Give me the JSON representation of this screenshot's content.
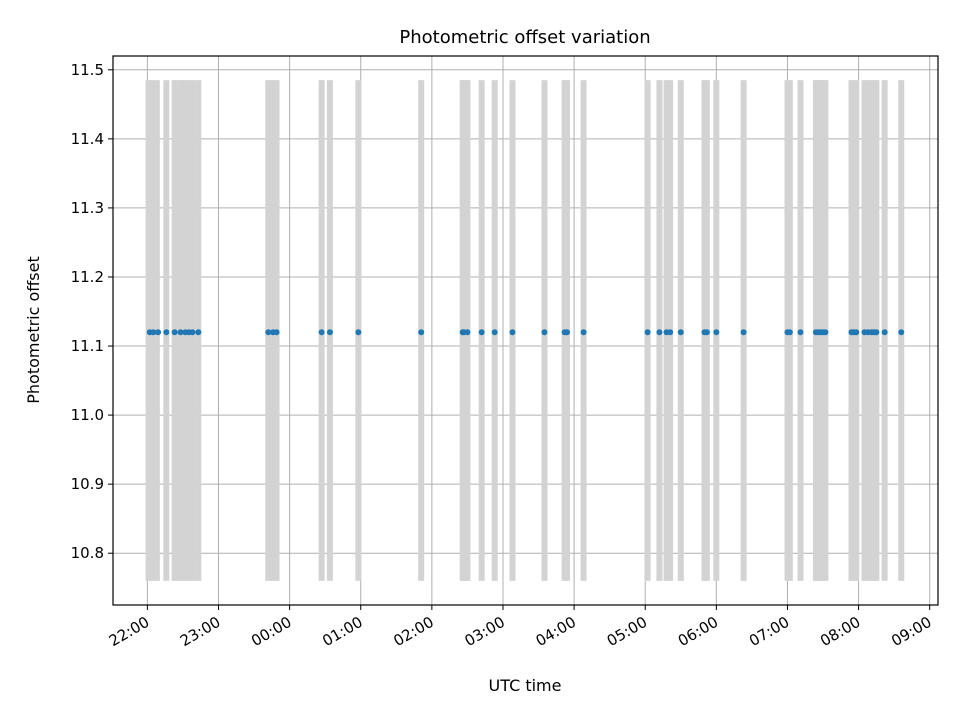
{
  "chart_data": {
    "type": "scatter",
    "title": "Photometric offset variation",
    "xlabel": "UTC time",
    "ylabel": "Photometric offset",
    "grid": true,
    "legend": "none",
    "x_axis": {
      "type": "time",
      "range": [
        "21:31",
        "09:07"
      ],
      "ticks": [
        "22:00",
        "23:00",
        "00:00",
        "01:00",
        "02:00",
        "03:00",
        "04:00",
        "05:00",
        "06:00",
        "07:00",
        "08:00",
        "09:00"
      ]
    },
    "y_axis": {
      "range": [
        10.725,
        11.52
      ],
      "ticks": [
        10.8,
        10.9,
        11.0,
        11.1,
        11.2,
        11.3,
        11.4,
        11.5
      ]
    },
    "colors": {
      "points": "#1f77b4",
      "bands": "#d3d3d3",
      "grid": "#b0b0b0"
    },
    "bands": {
      "y_range": [
        10.76,
        11.485
      ],
      "x": [
        "22:01",
        "22:04",
        "22:08",
        "22:16",
        "22:23",
        "22:28",
        "22:32",
        "22:35",
        "22:38",
        "22:43",
        "23:42",
        "23:46",
        "23:49",
        "00:27",
        "00:34",
        "00:58",
        "01:51",
        "02:26",
        "02:27",
        "02:30",
        "02:42",
        "02:53",
        "03:08",
        "03:35",
        "03:52",
        "03:54",
        "04:08",
        "05:02",
        "05:12",
        "05:18",
        "05:21",
        "05:30",
        "05:50",
        "05:52",
        "06:00",
        "06:23",
        "07:00",
        "07:02",
        "07:11",
        "07:24",
        "07:26",
        "07:28",
        "07:30",
        "07:32",
        "07:54",
        "07:56",
        "07:58",
        "08:05",
        "08:08",
        "08:11",
        "08:13",
        "08:15",
        "08:22",
        "08:36"
      ]
    },
    "series": [
      {
        "x": [
          "22:02",
          "22:05",
          "22:09",
          "22:16",
          "22:23",
          "22:28",
          "22:32",
          "22:35",
          "22:38",
          "22:43",
          "23:42",
          "23:46",
          "23:49",
          "00:27",
          "00:34",
          "00:58",
          "01:51",
          "02:26",
          "02:27",
          "02:30",
          "02:42",
          "02:53",
          "03:08",
          "03:35",
          "03:52",
          "03:54",
          "04:08",
          "05:02",
          "05:12",
          "05:18",
          "05:21",
          "05:30",
          "05:50",
          "05:52",
          "06:00",
          "06:23",
          "07:00",
          "07:02",
          "07:11",
          "07:24",
          "07:26",
          "07:28",
          "07:30",
          "07:32",
          "07:54",
          "07:56",
          "07:58",
          "08:05",
          "08:08",
          "08:11",
          "08:13",
          "08:15",
          "08:22",
          "08:36"
        ],
        "y": 11.12
      }
    ]
  }
}
